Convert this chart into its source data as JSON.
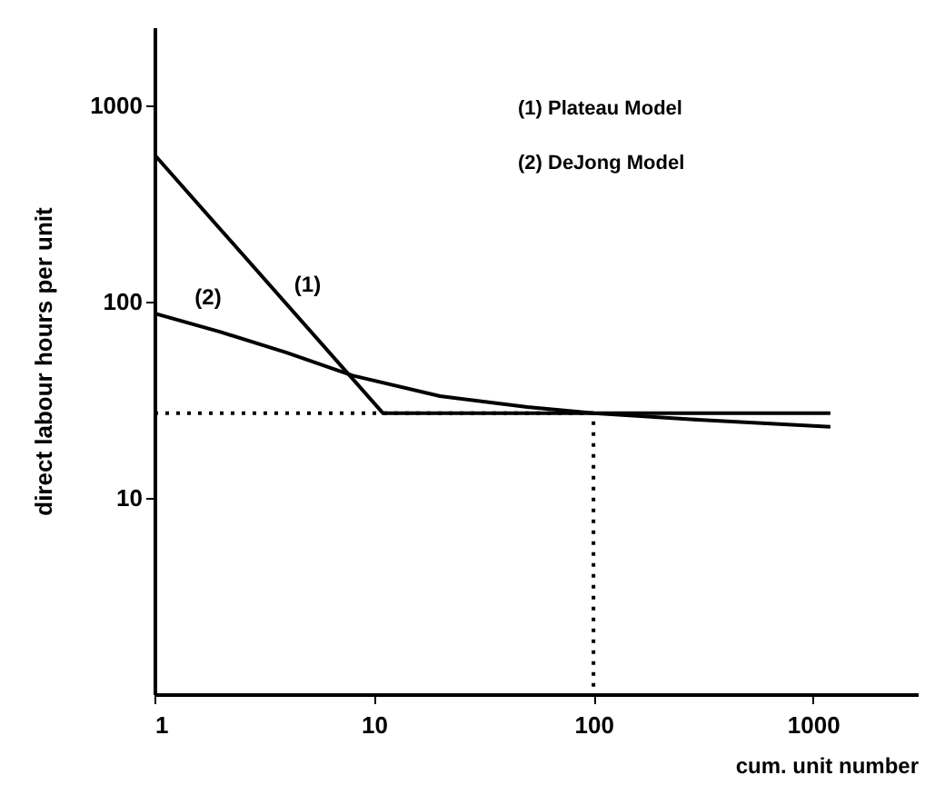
{
  "chart_data": {
    "type": "line",
    "xlabel": "cum. unit number",
    "ylabel": "direct labour hours per unit",
    "log": "xy",
    "xlim": [
      1,
      3000
    ],
    "ylim": [
      1,
      2500
    ],
    "xticks": [
      1,
      10,
      100,
      1000
    ],
    "yticks": [
      10,
      100,
      1000
    ],
    "annotations": [
      "(1) Plateau Model",
      "(2) DeJong Model"
    ],
    "series": [
      {
        "name": "(1)",
        "color": "#000000",
        "x": [
          1,
          11,
          1200
        ],
        "values": [
          560,
          27,
          27
        ]
      },
      {
        "name": "(2)",
        "color": "#000000",
        "x": [
          1,
          2,
          4,
          8,
          20,
          50,
          100,
          300,
          1200
        ],
        "values": [
          87,
          70,
          55,
          42,
          33,
          29,
          27,
          25,
          23
        ]
      },
      {
        "color": "#000000",
        "line_style": "dotted",
        "x": [
          1,
          100,
          100
        ],
        "values": [
          27,
          27,
          1
        ]
      }
    ]
  }
}
